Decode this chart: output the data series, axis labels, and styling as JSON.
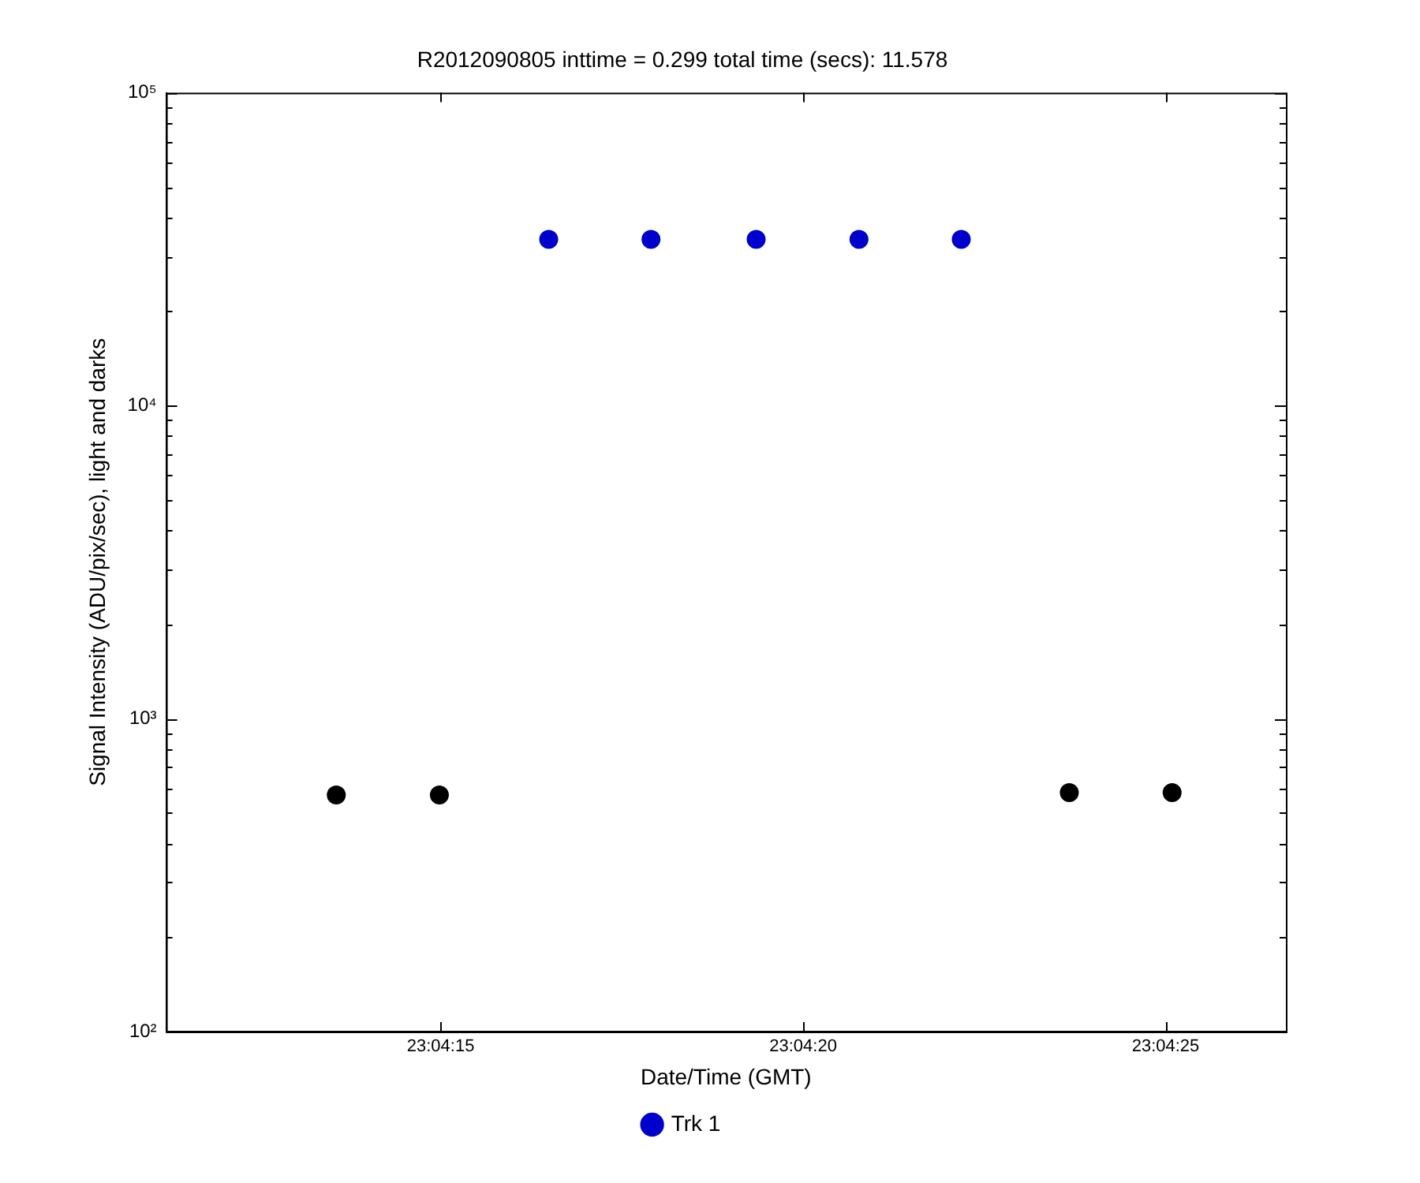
{
  "chart_data": {
    "type": "scatter",
    "title": "R2012090805 inttime = 0.299 total time (secs): 11.578",
    "xlabel": "Date/Time (GMT)",
    "ylabel": "Signal Intensity (ADU/pix/sec), light and darks",
    "xlim": [
      23.069781,
      23.074072
    ],
    "xticks": [
      {
        "value": 23.070833,
        "label": "23:04:15"
      },
      {
        "value": 23.072222,
        "label": "23:04:20"
      },
      {
        "value": 23.073611,
        "label": "23:04:25"
      }
    ],
    "ylim": [
      100,
      100000
    ],
    "log": true,
    "yticks": [
      {
        "value": 100,
        "label": "10²"
      },
      {
        "value": 200,
        "label": null
      },
      {
        "value": 300,
        "label": null
      },
      {
        "value": 400,
        "label": null
      },
      {
        "value": 500,
        "label": null
      },
      {
        "value": 600,
        "label": null
      },
      {
        "value": 700,
        "label": null
      },
      {
        "value": 800,
        "label": null
      },
      {
        "value": 900,
        "label": null
      },
      {
        "value": 1000,
        "label": "10³"
      },
      {
        "value": 2000,
        "label": null
      },
      {
        "value": 3000,
        "label": null
      },
      {
        "value": 4000,
        "label": null
      },
      {
        "value": 5000,
        "label": null
      },
      {
        "value": 6000,
        "label": null
      },
      {
        "value": 7000,
        "label": null
      },
      {
        "value": 8000,
        "label": null
      },
      {
        "value": 9000,
        "label": null
      },
      {
        "value": 10000,
        "label": "10⁴"
      },
      {
        "value": 20000,
        "label": null
      },
      {
        "value": 30000,
        "label": null
      },
      {
        "value": 40000,
        "label": null
      },
      {
        "value": 50000,
        "label": null
      },
      {
        "value": 60000,
        "label": null
      },
      {
        "value": 70000,
        "label": null
      },
      {
        "value": 80000,
        "label": null
      },
      {
        "value": 90000,
        "label": null
      },
      {
        "value": 100000,
        "label": "10⁵"
      }
    ],
    "grid": false,
    "legend": "bottom",
    "marker": "circle",
    "series": [
      {
        "name": "Trk 1",
        "color": "#0000cc",
        "x": [
          23.071247,
          23.071639,
          23.072042,
          23.072436,
          23.072828
        ],
        "values": [
          34000,
          34000,
          34000,
          34000,
          34000
        ]
      },
      {
        "color": "#000000",
        "x": [
          23.070433,
          23.070828,
          23.073242,
          23.073636
        ],
        "values": [
          570,
          570,
          580,
          580
        ]
      }
    ]
  }
}
